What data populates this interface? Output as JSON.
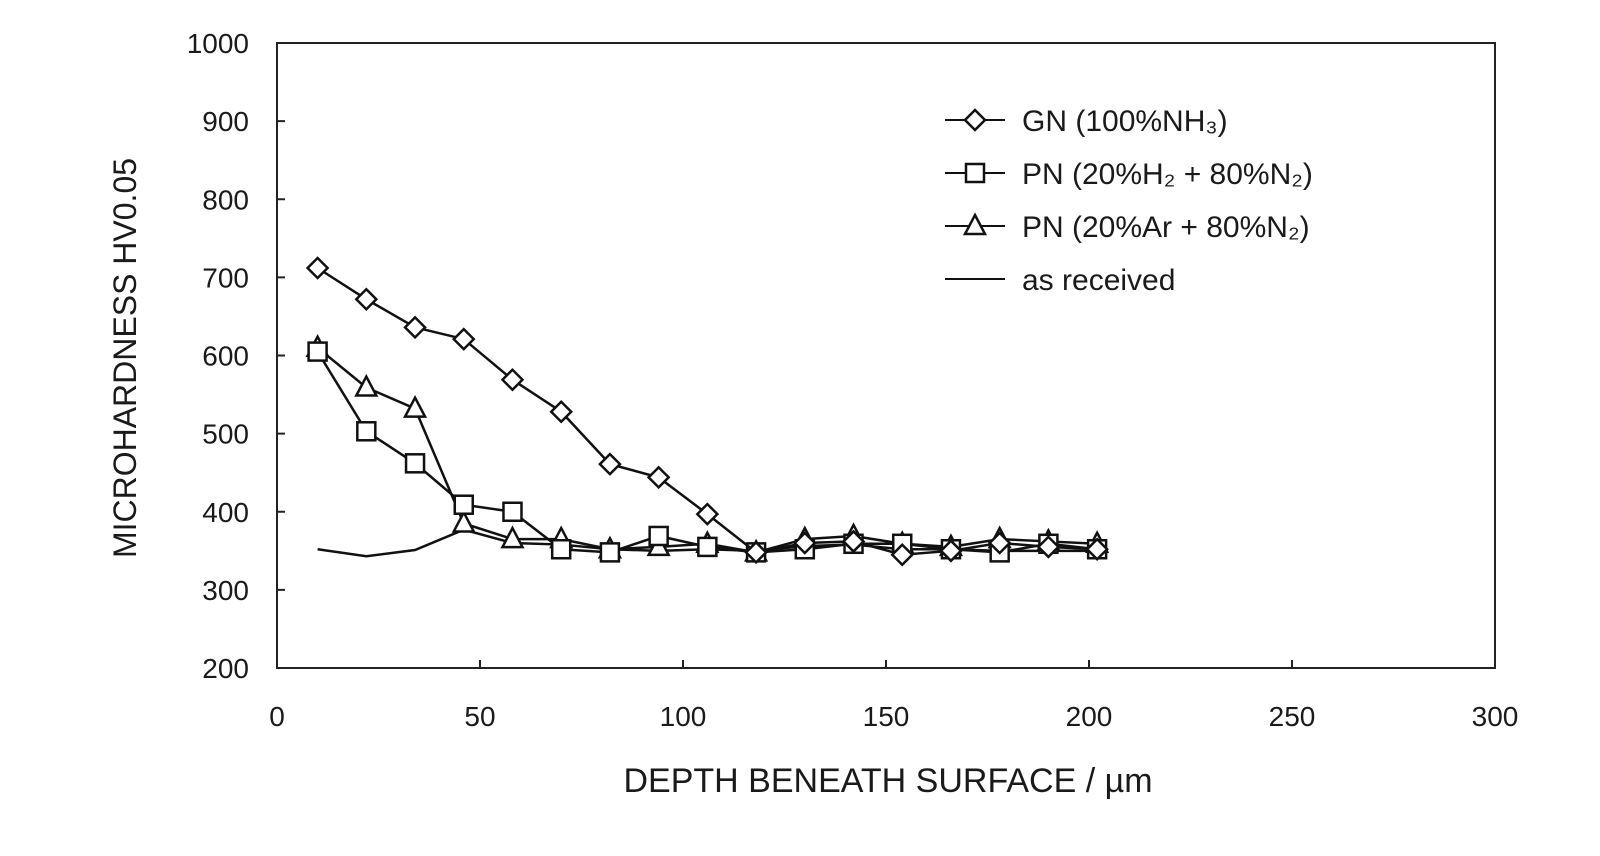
{
  "chart_data": {
    "type": "line",
    "title": "",
    "xlabel": "DEPTH BENEATH SURFACE / µm",
    "ylabel": "MICROHARDNESS HV0.05",
    "xlim": [
      0,
      300
    ],
    "ylim": [
      200,
      1000
    ],
    "xticks": [
      0,
      50,
      100,
      150,
      200,
      250,
      300
    ],
    "yticks": [
      200,
      300,
      400,
      500,
      600,
      700,
      800,
      900,
      1000
    ],
    "grid": false,
    "legend_position": "top-right",
    "x": [
      10,
      22,
      34,
      46,
      58,
      70,
      82,
      94,
      106,
      118,
      130,
      142,
      154,
      166,
      178,
      190,
      202
    ],
    "series": [
      {
        "name": "GN (100%NH₃)",
        "marker": "diamond",
        "values": [
          712,
          672,
          636,
          621,
          569,
          528,
          461,
          444,
          397,
          348,
          360,
          362,
          345,
          350,
          360,
          355,
          352
        ]
      },
      {
        "name": "PN (20%H₂ + 80%N₂)",
        "marker": "square",
        "values": [
          605,
          503,
          462,
          409,
          400,
          352,
          348,
          369,
          355,
          348,
          352,
          359,
          359,
          352,
          348,
          359,
          352
        ]
      },
      {
        "name": "PN (20%Ar + 80%N₂)",
        "marker": "triangle",
        "values": [
          610,
          559,
          532,
          385,
          365,
          365,
          352,
          355,
          359,
          348,
          365,
          369,
          359,
          355,
          365,
          362,
          359
        ]
      },
      {
        "name": "as received",
        "marker": "none",
        "values": [
          352,
          343,
          351,
          377,
          360,
          358,
          352,
          350,
          352,
          350,
          356,
          358,
          352,
          352,
          350,
          350,
          350
        ]
      }
    ]
  }
}
